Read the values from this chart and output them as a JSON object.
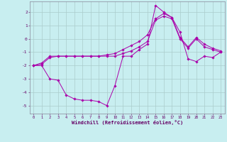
{
  "xlabel": "Windchill (Refroidissement éolien,°C)",
  "bg_color": "#c8eef0",
  "line_color": "#aa00aa",
  "grid_color": "#aacccc",
  "xlim": [
    -0.5,
    23.5
  ],
  "ylim": [
    -5.6,
    2.8
  ],
  "xticks": [
    0,
    1,
    2,
    3,
    4,
    5,
    6,
    7,
    8,
    9,
    10,
    11,
    12,
    13,
    14,
    15,
    16,
    17,
    18,
    19,
    20,
    21,
    22,
    23
  ],
  "yticks": [
    -5,
    -4,
    -3,
    -2,
    -1,
    0,
    1,
    2
  ],
  "series": [
    [
      0,
      -2.0,
      1,
      -1.9,
      2,
      -1.4,
      3,
      -1.3,
      4,
      -1.3,
      5,
      -1.3,
      6,
      -1.3,
      7,
      -1.3,
      8,
      -1.3,
      9,
      -1.2,
      10,
      -1.1,
      11,
      -0.8,
      12,
      -0.5,
      13,
      -0.2,
      14,
      0.3,
      15,
      1.5,
      16,
      1.9,
      17,
      1.6,
      18,
      0.1,
      19,
      -0.6,
      20,
      0.1,
      21,
      -0.4,
      22,
      -0.7,
      23,
      -0.9
    ],
    [
      0,
      -2.0,
      1,
      -1.8,
      2,
      -1.3,
      3,
      -1.3,
      4,
      -1.3,
      5,
      -1.3,
      6,
      -1.3,
      7,
      -1.3,
      8,
      -1.3,
      9,
      -1.3,
      10,
      -1.3,
      11,
      -1.1,
      12,
      -0.9,
      13,
      -0.6,
      14,
      -0.2,
      15,
      1.4,
      16,
      1.7,
      17,
      1.5,
      18,
      0.0,
      19,
      -0.7,
      20,
      0.0,
      21,
      -0.6,
      22,
      -0.8,
      23,
      -1.0
    ],
    [
      0,
      -2.0,
      1,
      -2.0,
      2,
      -3.0,
      3,
      -3.1,
      4,
      -4.2,
      5,
      -4.5,
      6,
      -4.6,
      7,
      -4.6,
      8,
      -4.7,
      9,
      -5.0,
      10,
      -3.5,
      11,
      -1.3,
      12,
      -1.3,
      13,
      -0.8,
      14,
      -0.4,
      15,
      2.5,
      16,
      2.0,
      17,
      1.6,
      18,
      0.5,
      19,
      -1.5,
      20,
      -1.7,
      21,
      -1.3,
      22,
      -1.4,
      23,
      -1.0
    ]
  ]
}
